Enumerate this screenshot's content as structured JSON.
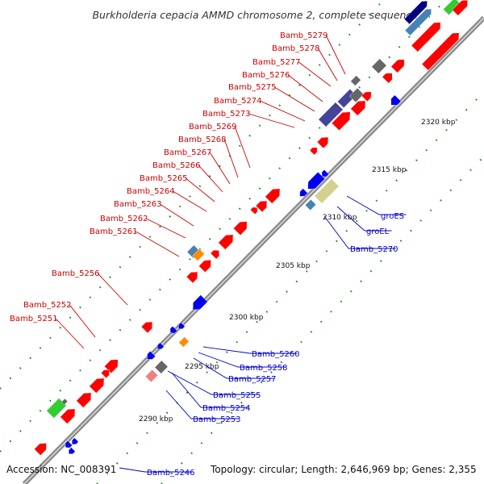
{
  "title": "Burkholderia cepacia AMMD chromosome 2, complete sequence",
  "footer": {
    "accession": "Accession: NC_008391",
    "topology": "Topology: circular; Length: 2,646,969 bp; Genes: 2,355"
  },
  "ticks": [
    "2320 kbp",
    "2315 kbp",
    "2310 kbp",
    "2305 kbp",
    "2300 kbp",
    "2295 kbp",
    "2290 kbp"
  ],
  "upper_labels": [
    "Bamb_5279",
    "Bamb_5278",
    "Bamb_5277",
    "Bamb_5276",
    "Bamb_5275",
    "Bamb_5274",
    "Bamb_5273",
    "Bamb_5269",
    "Bamb_5268",
    "Bamb_5267",
    "Bamb_5266",
    "Bamb_5265",
    "Bamb_5264",
    "Bamb_5263",
    "Bamb_5262",
    "Bamb_5261",
    "Bamb_5256",
    "Bamb_5252",
    "Bamb_5251"
  ],
  "lower_labels": [
    "groES",
    "groEL",
    "Bamb_5270",
    "Bamb_5260",
    "Bamb_5258",
    "Bamb_5257",
    "Bamb_5255",
    "Bamb_5254",
    "Bamb_5253",
    "Bamb_5246"
  ],
  "colors": {
    "cds_forward": "#ff0000",
    "cds_reverse": "#0000ee",
    "label_forward": "#cc0000",
    "label_reverse": "#0000cc",
    "backbone": "#8a8a8a",
    "dots": "#228822",
    "navy": "#000080",
    "slate": "#444499",
    "steel": "#4682b4",
    "khaki": "#d4d090",
    "orange": "#ff8c00",
    "pink": "#f08080",
    "gray": "#666666",
    "green": "#33cc33"
  }
}
